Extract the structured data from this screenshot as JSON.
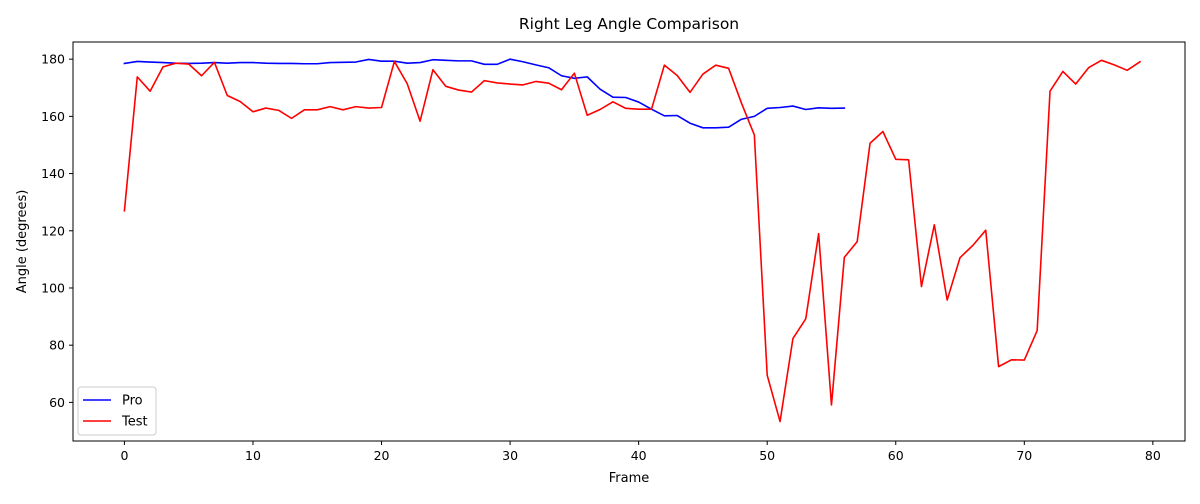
{
  "chart_data": {
    "type": "line",
    "title": "Right Leg Angle Comparison",
    "xlabel": "Frame",
    "ylabel": "Angle (degrees)",
    "xlim": [
      -4,
      82.5
    ],
    "ylim": [
      46.5,
      186
    ],
    "xticks": [
      0,
      10,
      20,
      30,
      40,
      50,
      60,
      70,
      80
    ],
    "yticks": [
      60,
      80,
      100,
      120,
      140,
      160,
      180
    ],
    "grid": false,
    "legend_position": "lower-left",
    "series": [
      {
        "name": "Pro",
        "color": "#0000ff",
        "x": [
          0,
          1,
          2,
          3,
          4,
          5,
          6,
          7,
          8,
          9,
          10,
          11,
          12,
          13,
          14,
          15,
          16,
          17,
          18,
          19,
          20,
          21,
          22,
          23,
          24,
          25,
          26,
          27,
          28,
          29,
          30,
          31,
          32,
          33,
          34,
          35,
          36,
          37,
          38,
          39,
          40,
          41,
          42,
          43,
          44,
          45,
          46,
          47,
          48,
          49,
          50,
          51,
          52,
          53,
          54,
          55,
          56
        ],
        "values": [
          178.5,
          179.2,
          179.0,
          178.8,
          178.6,
          178.5,
          178.6,
          178.8,
          178.6,
          178.8,
          178.8,
          178.6,
          178.5,
          178.5,
          178.4,
          178.4,
          178.8,
          178.9,
          179.0,
          179.9,
          179.3,
          179.3,
          178.6,
          178.8,
          179.8,
          179.6,
          179.4,
          179.4,
          178.2,
          178.2,
          180.0,
          179.1,
          178.0,
          177.0,
          174.2,
          173.3,
          173.8,
          169.5,
          166.7,
          166.6,
          165.0,
          162.5,
          160.2,
          160.3,
          157.6,
          156.0,
          156.0,
          156.2,
          159.0,
          160.0,
          162.8,
          163.1,
          163.6,
          162.4,
          163.0,
          162.8,
          162.9
        ]
      },
      {
        "name": "Test",
        "color": "#ff0000",
        "x": [
          0,
          1,
          2,
          3,
          4,
          5,
          6,
          7,
          8,
          9,
          10,
          11,
          12,
          13,
          14,
          15,
          16,
          17,
          18,
          19,
          20,
          21,
          22,
          23,
          24,
          25,
          26,
          27,
          28,
          29,
          30,
          31,
          32,
          33,
          34,
          35,
          36,
          37,
          38,
          39,
          40,
          41,
          42,
          43,
          44,
          45,
          46,
          47,
          48,
          49,
          50,
          51,
          52,
          53,
          54,
          55,
          56,
          57,
          58,
          59,
          60,
          61,
          62,
          63,
          64,
          65,
          66,
          67,
          68,
          69,
          70,
          71,
          72,
          73,
          74,
          75,
          76,
          77,
          78,
          79
        ],
        "values": [
          127.0,
          173.8,
          168.8,
          177.3,
          178.6,
          178.3,
          174.2,
          178.9,
          167.3,
          165.2,
          161.6,
          162.9,
          162.1,
          159.3,
          162.3,
          162.3,
          163.4,
          162.3,
          163.4,
          162.9,
          163.1,
          179.2,
          171.4,
          158.3,
          176.3,
          170.5,
          169.2,
          168.5,
          172.5,
          171.7,
          171.3,
          171.0,
          172.2,
          171.6,
          169.3,
          175.1,
          160.4,
          162.4,
          165.1,
          162.8,
          162.5,
          162.5,
          177.9,
          174.3,
          168.4,
          174.8,
          177.9,
          176.8,
          164.6,
          153.5,
          69.5,
          53.3,
          82.3,
          89.2,
          119.0,
          59.1,
          110.7,
          116.2,
          150.6,
          154.7,
          145.0,
          144.8,
          100.5,
          122.1,
          95.8,
          110.6,
          114.9,
          120.2,
          72.5,
          74.9,
          74.8,
          85.1,
          168.8,
          175.7,
          171.3,
          177.0,
          179.6,
          178.0,
          176.1,
          179.1
        ]
      }
    ]
  }
}
